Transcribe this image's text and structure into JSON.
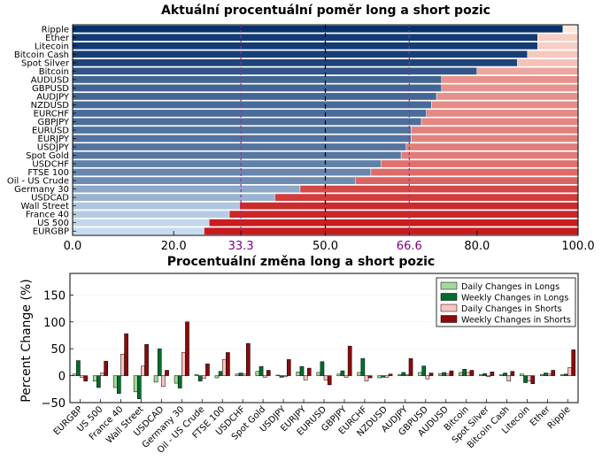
{
  "chart_data": [
    {
      "type": "bar",
      "orientation": "horizontal",
      "stacked": true,
      "title": "Aktuální procentuální poměr long a short pozic",
      "xlabel": "",
      "ylabel": "",
      "xlim": [
        0,
        100
      ],
      "xticks": [
        "0.0",
        "20.0",
        "33.3",
        "50.0",
        "66.6",
        "80.0",
        "100.0"
      ],
      "reference_lines": [
        33.3,
        50.0,
        66.6
      ],
      "grid": false,
      "categories": [
        "Ripple",
        "Ether",
        "Litecoin",
        "Bitcoin Cash",
        "Spot Silver",
        "Bitcoin",
        "AUDUSD",
        "GBPUSD",
        "AUDJPY",
        "NZDUSD",
        "EURCHF",
        "GBPJPY",
        "EURUSD",
        "EURJPY",
        "USDJPY",
        "Spot Gold",
        "USDCHF",
        "FTSE 100",
        "Oil - US Crude",
        "Germany 30",
        "USDCAD",
        "Wall Street",
        "France 40",
        "US 500",
        "EURGBP"
      ],
      "series": [
        {
          "values": [
            97,
            92,
            92,
            90,
            88,
            80,
            73,
            73,
            72,
            71,
            70,
            69,
            67,
            67,
            66,
            65,
            61,
            59,
            56,
            45,
            40,
            33,
            31,
            27,
            26
          ]
        },
        {
          "values": [
            3,
            8,
            8,
            10,
            12,
            20,
            27,
            27,
            28,
            29,
            30,
            31,
            33,
            33,
            34,
            35,
            39,
            41,
            44,
            55,
            60,
            67,
            69,
            73,
            74
          ]
        }
      ]
    },
    {
      "type": "bar",
      "title": "Procentuální změna long a short pozic",
      "xlabel": "",
      "ylabel": "Percent Change (%)",
      "ylim": [
        -50,
        190
      ],
      "yticks": [
        "−50",
        "0",
        "50",
        "100",
        "150"
      ],
      "legend_position": "top-right",
      "grid": false,
      "categories": [
        "EURGBP",
        "US 500",
        "France 40",
        "Wall Street",
        "USDCAD",
        "Germany 30",
        "Oil - US Crude",
        "FTSE 100",
        "USDCHF",
        "Spot Gold",
        "USDJPY",
        "EURJPY",
        "EURUSD",
        "GBPJPY",
        "EURCHF",
        "NZDUSD",
        "AUDJPY",
        "GBPUSD",
        "AUDUSD",
        "Bitcoin",
        "Spot Silver",
        "Bitcoin Cash",
        "Litecoin",
        "Ether",
        "Ripple"
      ],
      "series": [
        {
          "name": "Daily Changes in Longs",
          "color": "#a1d99b",
          "values": [
            3,
            -10,
            -22,
            -30,
            -12,
            -14,
            2,
            -4,
            3,
            8,
            1,
            7,
            6,
            3,
            6,
            -4,
            2,
            6,
            4,
            6,
            2,
            2,
            3,
            2,
            2
          ]
        },
        {
          "name": "Weekly Changes in Longs",
          "color": "#006d2c",
          "values": [
            28,
            -22,
            -33,
            -43,
            50,
            -23,
            -10,
            8,
            5,
            17,
            -3,
            17,
            26,
            9,
            32,
            -3,
            6,
            18,
            6,
            12,
            4,
            5,
            -13,
            5,
            3
          ]
        },
        {
          "name": "Daily Changes in Shorts",
          "color": "#fbc4c4",
          "values": [
            -3,
            5,
            40,
            18,
            -20,
            43,
            -5,
            30,
            3,
            -3,
            -2,
            -8,
            -8,
            -3,
            -10,
            -3,
            2,
            -6,
            4,
            6,
            -2,
            -10,
            -10,
            3,
            15
          ]
        },
        {
          "name": "Weekly Changes in Shorts",
          "color": "#8b0a0a",
          "values": [
            -10,
            27,
            78,
            58,
            10,
            100,
            22,
            43,
            60,
            10,
            30,
            14,
            -17,
            55,
            -4,
            3,
            32,
            5,
            9,
            10,
            7,
            8,
            -15,
            10,
            48
          ]
        }
      ]
    }
  ]
}
